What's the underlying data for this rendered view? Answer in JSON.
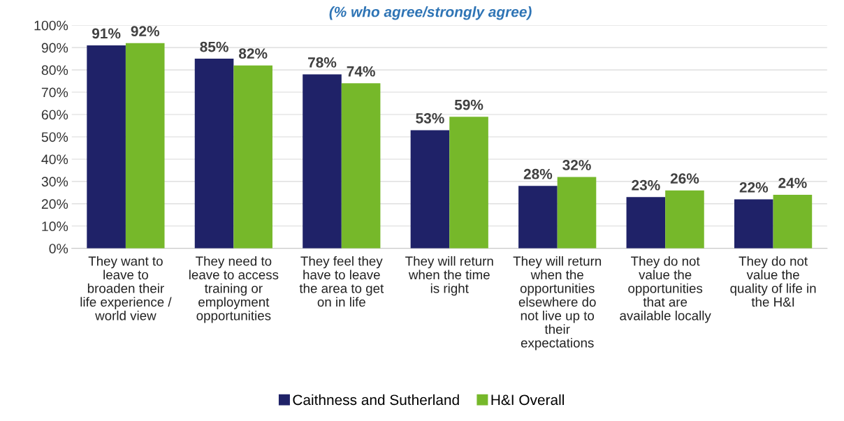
{
  "chart_data": {
    "type": "bar",
    "title": "(% who agree/strongly agree)",
    "categories": [
      "They want to\nleave to\nbroaden their\nlife experience /\nworld view",
      "They need to\nleave to access\ntraining or\nemployment\nopportunities",
      "They feel they\nhave to leave\nthe area to get\non in life",
      "They will return\nwhen the time\nis right",
      "They will return\nwhen the\nopportunities\nelsewhere do\nnot live up to\ntheir\nexpectations",
      "They do not\nvalue the\nopportunities\nthat are\navailable locally",
      "They do not\nvalue the\nquality of life in\nthe H&I"
    ],
    "series": [
      {
        "name": "Caithness and Sutherland",
        "color": "#1f2268",
        "values": [
          91,
          85,
          78,
          53,
          28,
          23,
          22
        ],
        "value_labels": [
          "91%",
          "85%",
          "78%",
          "53%",
          "28%",
          "23%",
          "22%"
        ]
      },
      {
        "name": "H&I Overall",
        "color": "#76b82a",
        "values": [
          92,
          82,
          74,
          59,
          32,
          26,
          24
        ],
        "value_labels": [
          "92%",
          "82%",
          "74%",
          "59%",
          "32%",
          "26%",
          "24%"
        ]
      }
    ],
    "ylim": [
      0,
      100
    ],
    "yticks": [
      {
        "value": 0,
        "label": "0%"
      },
      {
        "value": 10,
        "label": "10%"
      },
      {
        "value": 20,
        "label": "20%"
      },
      {
        "value": 30,
        "label": "30%"
      },
      {
        "value": 40,
        "label": "40%"
      },
      {
        "value": 50,
        "label": "50%"
      },
      {
        "value": 60,
        "label": "60%"
      },
      {
        "value": 70,
        "label": "70%"
      },
      {
        "value": 80,
        "label": "80%"
      },
      {
        "value": 90,
        "label": "90%"
      },
      {
        "value": 100,
        "label": "100%"
      }
    ],
    "grid": "y",
    "legend": "bottom"
  }
}
